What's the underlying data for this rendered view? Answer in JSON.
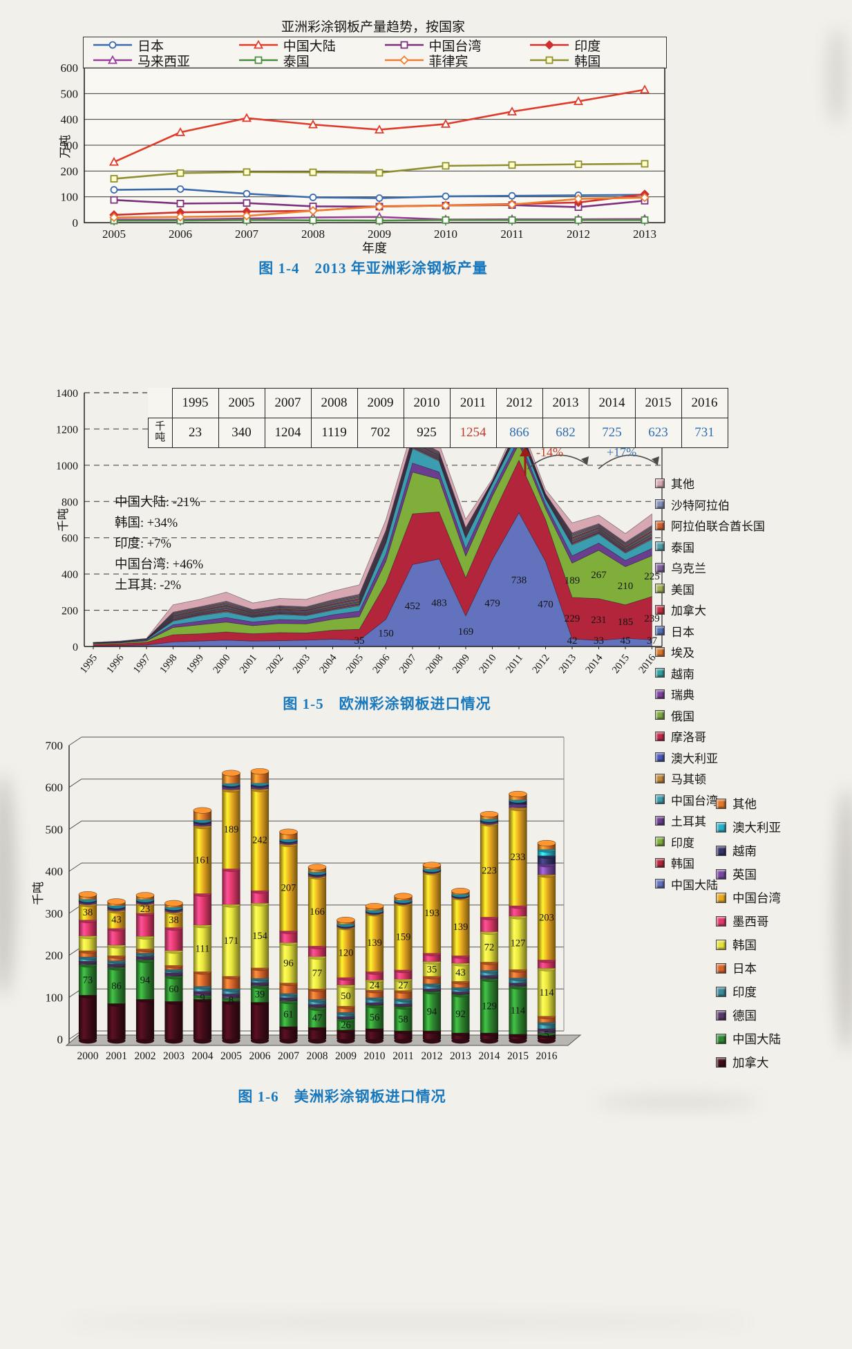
{
  "captions": {
    "fig14": "图 1-4　2013 年亚洲彩涂钢板产量",
    "fig15": "图 1-5　欧洲彩涂钢板进口情况",
    "fig16": "图 1-6　美洲彩涂钢板进口情况"
  },
  "chart_data": [
    {
      "id": "asia-coated-steel-production",
      "type": "line",
      "title": "亚洲彩涂钢板产量趋势，按国家",
      "xlabel": "年度",
      "ylabel": "万吨",
      "ylim": [
        0,
        600
      ],
      "yticks": [
        0,
        100,
        200,
        300,
        400,
        500,
        600
      ],
      "grid": "on",
      "legend_position": "top",
      "categories": [
        "2005",
        "2006",
        "2007",
        "2008",
        "2009",
        "2010",
        "2011",
        "2012",
        "2013"
      ],
      "series": [
        {
          "name": "日本",
          "color": "#3a6aae",
          "marker": "circle",
          "marker_fill": "#ffffff",
          "values": [
            127,
            130,
            112,
            98,
            95,
            102,
            104,
            106,
            108
          ]
        },
        {
          "name": "中国大陆",
          "color": "#e03a2a",
          "marker": "triangle",
          "marker_fill": "#ffffff",
          "values": [
            235,
            350,
            405,
            380,
            360,
            382,
            430,
            470,
            515
          ]
        },
        {
          "name": "中国台湾",
          "color": "#7b2f7d",
          "marker": "square",
          "marker_fill": "#ffffff",
          "values": [
            88,
            74,
            76,
            63,
            62,
            66,
            68,
            60,
            85
          ]
        },
        {
          "name": "印度",
          "color": "#cf2f2f",
          "marker": "diamond",
          "marker_fill": "#cf2f2f",
          "values": [
            30,
            40,
            43,
            46,
            63,
            67,
            72,
            78,
            110
          ]
        },
        {
          "name": "马来西亚",
          "color": "#9a3a9a",
          "marker": "triangle",
          "marker_fill": "#ffffff",
          "values": [
            12,
            12,
            16,
            20,
            22,
            12,
            13,
            13,
            14
          ]
        },
        {
          "name": "泰国",
          "color": "#4a8c3f",
          "marker": "square",
          "marker_fill": "#ffffff",
          "values": [
            8,
            8,
            10,
            9,
            8,
            10,
            10,
            10,
            10
          ]
        },
        {
          "name": "菲律宾",
          "color": "#ef7d2e",
          "marker": "diamond",
          "marker_fill": "#ffffff",
          "values": [
            20,
            22,
            26,
            46,
            62,
            66,
            70,
            92,
            97
          ]
        },
        {
          "name": "韩国",
          "color": "#8f8f2f",
          "marker": "square",
          "marker_fill": "#ffffcc",
          "values": [
            170,
            192,
            196,
            195,
            193,
            220,
            223,
            226,
            228
          ]
        }
      ]
    },
    {
      "id": "europe-coated-steel-imports",
      "type": "area",
      "ylabel": "千吨",
      "ylim": [
        0,
        1400
      ],
      "yticks": [
        0,
        200,
        400,
        600,
        800,
        1000,
        1200,
        1400
      ],
      "grid": "dashed",
      "x": [
        "1995",
        "1996",
        "1997",
        "1998",
        "1999",
        "2000",
        "2001",
        "2002",
        "2003",
        "2004",
        "2005",
        "2006",
        "2007",
        "2008",
        "2009",
        "2010",
        "2011",
        "2012",
        "2013",
        "2014",
        "2015",
        "2016"
      ],
      "table": {
        "row_header": "千吨",
        "years": [
          "1995",
          "2005",
          "2007",
          "2008",
          "2009",
          "2010",
          "2011",
          "2012",
          "2013",
          "2014",
          "2015",
          "2016"
        ],
        "values": [
          23,
          340,
          1204,
          1119,
          702,
          925,
          1254,
          866,
          682,
          725,
          623,
          731
        ],
        "red_value_years": [
          "2011"
        ],
        "blue_value_years": [
          "2012",
          "2013",
          "2014",
          "2015",
          "2016"
        ]
      },
      "annotations": {
        "country_changes": [
          "中国大陆: -21%",
          "韩国: +34%",
          "印度: +7%",
          "中国台湾: +46%",
          "土耳其: -2%"
        ],
        "pct_down": "-14%",
        "pct_up": "+17%"
      },
      "legend_top_to_bottom": [
        {
          "label": "其他",
          "color": "#d8a8b2"
        },
        {
          "label": "沙特阿拉伯",
          "color": "#8090b8"
        },
        {
          "label": "阿拉伯联合酋长国",
          "color": "#d06030"
        },
        {
          "label": "泰国",
          "color": "#50a0a8"
        },
        {
          "label": "乌克兰",
          "color": "#8060a0"
        },
        {
          "label": "美国",
          "color": "#a0b050"
        },
        {
          "label": "加拿大",
          "color": "#c03040"
        },
        {
          "label": "日本",
          "color": "#5070b0"
        },
        {
          "label": "埃及",
          "color": "#d97829"
        },
        {
          "label": "越南",
          "color": "#30a0a0"
        },
        {
          "label": "瑞典",
          "color": "#8040a0"
        },
        {
          "label": "俄国",
          "color": "#80a840"
        },
        {
          "label": "摩洛哥",
          "color": "#c02848"
        },
        {
          "label": "澳大利亚",
          "color": "#4858b8"
        },
        {
          "label": "马其顿",
          "color": "#c08838"
        },
        {
          "label": "中国台湾",
          "color": "#3b9eb0"
        },
        {
          "label": "土耳其",
          "color": "#6a3d8f"
        },
        {
          "label": "印度",
          "color": "#7fae3a"
        },
        {
          "label": "韩国",
          "color": "#b2253a"
        },
        {
          "label": "中国大陆",
          "color": "#6272bc"
        }
      ],
      "series": [
        {
          "name": "中国大陆",
          "color": "#6272bc",
          "values": [
            3,
            5,
            8,
            25,
            30,
            35,
            30,
            32,
            35,
            40,
            35,
            150,
            452,
            483,
            169,
            479,
            738,
            470,
            42,
            33,
            45,
            37
          ]
        },
        {
          "name": "韩国",
          "color": "#b2253a",
          "values": [
            8,
            10,
            15,
            40,
            40,
            45,
            40,
            45,
            40,
            50,
            60,
            200,
            280,
            260,
            210,
            240,
            290,
            230,
            229,
            231,
            185,
            239
          ]
        },
        {
          "name": "印度",
          "color": "#7fae3a",
          "values": [
            5,
            5,
            8,
            40,
            50,
            55,
            45,
            50,
            50,
            60,
            70,
            120,
            230,
            180,
            120,
            110,
            90,
            60,
            189,
            267,
            210,
            225
          ]
        },
        {
          "name": "土耳其",
          "color": "#6a3d8f",
          "values": [
            2,
            3,
            4,
            15,
            20,
            25,
            20,
            22,
            20,
            25,
            30,
            40,
            50,
            40,
            40,
            30,
            30,
            25,
            40,
            40,
            35,
            40
          ]
        },
        {
          "name": "中国台湾",
          "color": "#3b9eb0",
          "values": [
            2,
            3,
            4,
            20,
            30,
            30,
            25,
            28,
            25,
            25,
            30,
            60,
            80,
            60,
            60,
            40,
            40,
            30,
            60,
            50,
            40,
            50
          ]
        },
        {
          "name": "其他合计",
          "combined": true,
          "values": [
            3,
            4,
            6,
            90,
            90,
            110,
            80,
            88,
            90,
            105,
            115,
            130,
            112,
            96,
            103,
            26,
            66,
            51,
            122,
            104,
            108,
            140
          ],
          "split_across": [
            "马其顿",
            "澳大利亚",
            "摩洛哥",
            "俄国",
            "瑞典",
            "越南",
            "埃及",
            "日本",
            "加拿大",
            "美国",
            "乌克兰",
            "泰国",
            "阿拉伯联合酋长国",
            "沙特阿拉伯",
            "其他"
          ],
          "weights": {
            "其他": 0.45
          },
          "default_weight": 0.039286
        }
      ],
      "label_points": [
        {
          "series": "中国大陆",
          "years": [
            "2005",
            "2006",
            "2007",
            "2008",
            "2009",
            "2010",
            "2011",
            "2012",
            "2013",
            "2014",
            "2015",
            "2016"
          ]
        },
        {
          "series": "韩国",
          "years": [
            "2013",
            "2014",
            "2015",
            "2016"
          ]
        },
        {
          "series": "印度",
          "years": [
            "2013",
            "2014",
            "2015",
            "2016"
          ]
        }
      ]
    },
    {
      "id": "america-coated-steel-imports",
      "type": "bar",
      "ylabel": "千吨",
      "ylim": [
        0,
        700
      ],
      "yticks": [
        0,
        100,
        200,
        300,
        400,
        500,
        600,
        700
      ],
      "grid": "on",
      "categories": [
        "2000",
        "2001",
        "2002",
        "2003",
        "2004",
        "2005",
        "2006",
        "2007",
        "2008",
        "2009",
        "2010",
        "2011",
        "2012",
        "2013",
        "2014",
        "2015",
        "2016"
      ],
      "series": [
        {
          "name": "加拿大",
          "color": "#400c18",
          "values": [
            105,
            85,
            95,
            90,
            95,
            90,
            88,
            30,
            28,
            22,
            25,
            20,
            20,
            15,
            15,
            12,
            10
          ]
        },
        {
          "name": "中国大陆",
          "color": "#2e8830",
          "values": [
            73,
            86,
            94,
            60,
            9,
            8,
            39,
            61,
            47,
            26,
            56,
            58,
            94,
            92,
            129,
            114,
            5
          ]
        },
        {
          "name": "德国",
          "color": "#58386a",
          "values": [
            8,
            8,
            8,
            8,
            10,
            10,
            8,
            8,
            8,
            6,
            6,
            6,
            6,
            6,
            8,
            8,
            10
          ]
        },
        {
          "name": "印度",
          "color": "#3a8898",
          "values": [
            10,
            8,
            8,
            8,
            12,
            12,
            10,
            10,
            12,
            10,
            12,
            12,
            12,
            10,
            12,
            12,
            15
          ]
        },
        {
          "name": "日本",
          "color": "#d8642a",
          "values": [
            15,
            12,
            10,
            10,
            35,
            30,
            25,
            25,
            25,
            15,
            18,
            20,
            18,
            15,
            20,
            20,
            15
          ]
        },
        {
          "name": "韩国",
          "color": "#e6e23c",
          "values": [
            35,
            25,
            30,
            35,
            111,
            171,
            154,
            96,
            77,
            50,
            24,
            27,
            35,
            43,
            72,
            127,
            114
          ]
        },
        {
          "name": "墨西哥",
          "color": "#e0386a",
          "values": [
            38,
            40,
            55,
            55,
            75,
            85,
            30,
            28,
            25,
            18,
            20,
            22,
            20,
            18,
            35,
            25,
            20
          ]
        },
        {
          "name": "中国台湾",
          "color": "#e8a820",
          "values": [
            38,
            43,
            23,
            38,
            161,
            189,
            242,
            207,
            166,
            120,
            139,
            159,
            193,
            139,
            223,
            233,
            203
          ]
        },
        {
          "name": "英国",
          "color": "#7848a0",
          "values": [
            5,
            5,
            4,
            4,
            6,
            6,
            6,
            5,
            4,
            3,
            3,
            3,
            3,
            3,
            4,
            8,
            25
          ]
        },
        {
          "name": "越南",
          "color": "#343468",
          "values": [
            3,
            3,
            3,
            3,
            4,
            4,
            4,
            3,
            3,
            2,
            2,
            2,
            2,
            2,
            3,
            8,
            20
          ]
        },
        {
          "name": "澳大利亚",
          "color": "#28b0c8",
          "values": [
            3,
            3,
            3,
            3,
            4,
            4,
            4,
            3,
            3,
            2,
            2,
            2,
            2,
            2,
            3,
            3,
            15
          ]
        },
        {
          "name": "其他",
          "color": "#e07828",
          "values": [
            12,
            10,
            10,
            10,
            23,
            25,
            28,
            18,
            12,
            10,
            10,
            10,
            10,
            8,
            12,
            14,
            15
          ]
        }
      ],
      "value_labels": {
        "中国大陆": [
          "2000",
          "2001",
          "2002",
          "2003",
          "2004",
          "2005",
          "2006",
          "2007",
          "2008",
          "2009",
          "2010",
          "2011",
          "2012",
          "2013",
          "2014",
          "2015",
          "2016"
        ],
        "韩国": [
          "2004",
          "2005",
          "2006",
          "2007",
          "2008",
          "2009",
          "2010",
          "2011",
          "2012",
          "2013",
          "2014",
          "2015",
          "2016"
        ],
        "中国台湾": [
          "2000",
          "2001",
          "2002",
          "2003",
          "2004",
          "2005",
          "2006",
          "2007",
          "2008",
          "2009",
          "2010",
          "2011",
          "2012",
          "2013",
          "2014",
          "2015",
          "2016"
        ]
      }
    }
  ]
}
